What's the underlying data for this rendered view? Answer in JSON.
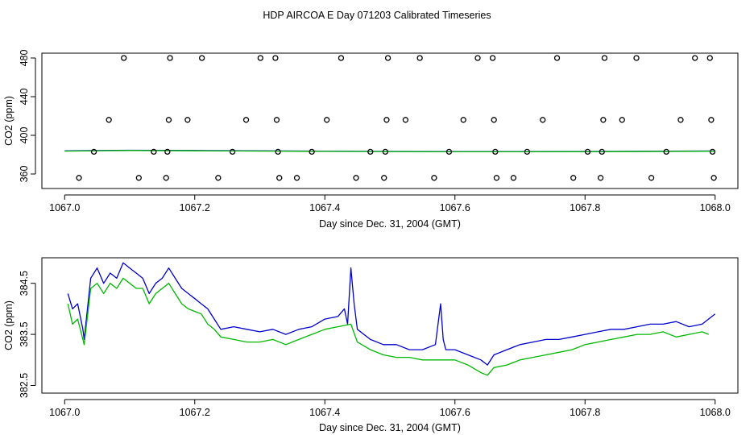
{
  "title": "HDP AIRCOA E  Day 071203  Calibrated Timeseries",
  "colors": {
    "blue": "#0000cc",
    "green": "#00b800",
    "black": "#000000"
  },
  "chart_data": [
    {
      "type": "scatter",
      "xlabel": "Day since Dec. 31, 2004 (GMT)",
      "ylabel": "CO2 (ppm)",
      "xlim": [
        1066.965,
        1068.035
      ],
      "ylim": [
        345,
        485
      ],
      "xticks": [
        1067.0,
        1067.2,
        1067.4,
        1067.6,
        1067.8,
        1068.0
      ],
      "xtick_labels": [
        "1067.0",
        "1067.2",
        "1067.4",
        "1067.6",
        "1067.8",
        "1068.0"
      ],
      "yticks": [
        360,
        400,
        440,
        480
      ],
      "ytick_labels": [
        "360",
        "400",
        "440",
        "480"
      ],
      "series": [
        {
          "style": "points",
          "color": "#000000",
          "points": [
            [
              1067.091,
              480
            ],
            [
              1067.162,
              480
            ],
            [
              1067.211,
              480
            ],
            [
              1067.301,
              480
            ],
            [
              1067.324,
              480
            ],
            [
              1067.425,
              480
            ],
            [
              1067.497,
              480
            ],
            [
              1067.546,
              480
            ],
            [
              1067.635,
              480
            ],
            [
              1067.658,
              480
            ],
            [
              1067.757,
              480
            ],
            [
              1067.83,
              480
            ],
            [
              1067.879,
              480
            ],
            [
              1067.969,
              480
            ],
            [
              1067.992,
              480
            ],
            [
              1067.068,
              416
            ],
            [
              1067.16,
              416
            ],
            [
              1067.189,
              416
            ],
            [
              1067.279,
              416
            ],
            [
              1067.326,
              416
            ],
            [
              1067.403,
              416
            ],
            [
              1067.495,
              416
            ],
            [
              1067.524,
              416
            ],
            [
              1067.613,
              416
            ],
            [
              1067.66,
              416
            ],
            [
              1067.735,
              416
            ],
            [
              1067.828,
              416
            ],
            [
              1067.857,
              416
            ],
            [
              1067.947,
              416
            ],
            [
              1067.994,
              416
            ],
            [
              1067.045,
              383
            ],
            [
              1067.137,
              383
            ],
            [
              1067.158,
              383
            ],
            [
              1067.258,
              383
            ],
            [
              1067.328,
              383
            ],
            [
              1067.38,
              383
            ],
            [
              1067.47,
              383
            ],
            [
              1067.493,
              383
            ],
            [
              1067.591,
              383
            ],
            [
              1067.662,
              383
            ],
            [
              1067.711,
              383
            ],
            [
              1067.804,
              383
            ],
            [
              1067.826,
              383
            ],
            [
              1067.925,
              383
            ],
            [
              1067.996,
              383
            ],
            [
              1067.022,
              356
            ],
            [
              1067.114,
              356
            ],
            [
              1067.156,
              356
            ],
            [
              1067.236,
              356
            ],
            [
              1067.33,
              356
            ],
            [
              1067.357,
              356
            ],
            [
              1067.448,
              356
            ],
            [
              1067.491,
              356
            ],
            [
              1067.568,
              356
            ],
            [
              1067.664,
              356
            ],
            [
              1067.69,
              356
            ],
            [
              1067.782,
              356
            ],
            [
              1067.824,
              356
            ],
            [
              1067.902,
              356
            ],
            [
              1067.998,
              356
            ]
          ]
        },
        {
          "style": "line",
          "color": "#0000cc",
          "x": [
            1067.0,
            1067.1,
            1067.2,
            1067.4,
            1067.6,
            1067.8,
            1068.0
          ],
          "y": [
            383.9,
            384.6,
            384.3,
            383.6,
            383.2,
            383.3,
            383.8
          ]
        },
        {
          "style": "line",
          "color": "#00b800",
          "x": [
            1067.0,
            1067.1,
            1067.2,
            1067.4,
            1067.6,
            1067.8,
            1068.0
          ],
          "y": [
            383.7,
            384.3,
            384.0,
            383.4,
            383.0,
            383.1,
            383.6
          ]
        }
      ]
    },
    {
      "type": "line",
      "xlabel": "Day since Dec. 31, 2004 (GMT)",
      "ylabel": "CO2 (ppm)",
      "xlim": [
        1066.965,
        1068.035
      ],
      "ylim": [
        382.35,
        385.0
      ],
      "xticks": [
        1067.0,
        1067.2,
        1067.4,
        1067.6,
        1067.8,
        1068.0
      ],
      "xtick_labels": [
        "1067.0",
        "1067.2",
        "1067.4",
        "1067.6",
        "1067.8",
        "1068.0"
      ],
      "yticks": [
        382.5,
        383.5,
        384.5
      ],
      "ytick_labels": [
        "382.5",
        "383.5",
        "384.5"
      ],
      "series": [
        {
          "color": "#0000cc",
          "x": [
            1067.005,
            1067.012,
            1067.02,
            1067.028,
            1067.03,
            1067.04,
            1067.05,
            1067.06,
            1067.07,
            1067.08,
            1067.09,
            1067.1,
            1067.11,
            1067.12,
            1067.13,
            1067.14,
            1067.15,
            1067.16,
            1067.17,
            1067.18,
            1067.19,
            1067.2,
            1067.21,
            1067.22,
            1067.23,
            1067.24,
            1067.26,
            1067.28,
            1067.3,
            1067.32,
            1067.34,
            1067.36,
            1067.38,
            1067.4,
            1067.42,
            1067.43,
            1067.435,
            1067.44,
            1067.445,
            1067.45,
            1067.47,
            1067.49,
            1067.51,
            1067.53,
            1067.55,
            1067.57,
            1067.578,
            1067.582,
            1067.586,
            1067.6,
            1067.62,
            1067.64,
            1067.65,
            1067.66,
            1067.68,
            1067.7,
            1067.72,
            1067.74,
            1067.76,
            1067.78,
            1067.8,
            1067.82,
            1067.84,
            1067.86,
            1067.88,
            1067.9,
            1067.92,
            1067.94,
            1067.96,
            1067.98,
            1068.0
          ],
          "y": [
            384.3,
            384.0,
            384.1,
            383.6,
            383.4,
            384.6,
            384.8,
            384.5,
            384.7,
            384.6,
            384.9,
            384.8,
            384.7,
            384.6,
            384.3,
            384.5,
            384.6,
            384.8,
            384.6,
            384.4,
            384.3,
            384.2,
            384.1,
            384.0,
            383.8,
            383.6,
            383.65,
            383.6,
            383.55,
            383.6,
            383.5,
            383.6,
            383.65,
            383.8,
            383.85,
            384.0,
            383.7,
            384.8,
            384.1,
            383.6,
            383.4,
            383.3,
            383.3,
            383.2,
            383.2,
            383.3,
            384.1,
            383.4,
            383.2,
            383.2,
            383.1,
            383.0,
            382.9,
            383.1,
            383.2,
            383.3,
            383.35,
            383.4,
            383.4,
            383.45,
            383.5,
            383.55,
            383.6,
            383.6,
            383.65,
            383.7,
            383.7,
            383.75,
            383.65,
            383.7,
            383.9
          ]
        },
        {
          "color": "#00b800",
          "x": [
            1067.005,
            1067.012,
            1067.02,
            1067.028,
            1067.03,
            1067.04,
            1067.05,
            1067.06,
            1067.07,
            1067.08,
            1067.09,
            1067.1,
            1067.11,
            1067.12,
            1067.13,
            1067.14,
            1067.15,
            1067.16,
            1067.17,
            1067.18,
            1067.19,
            1067.2,
            1067.21,
            1067.22,
            1067.23,
            1067.24,
            1067.26,
            1067.28,
            1067.3,
            1067.32,
            1067.34,
            1067.36,
            1067.38,
            1067.4,
            1067.42,
            1067.44,
            1067.45,
            1067.47,
            1067.49,
            1067.51,
            1067.53,
            1067.55,
            1067.57,
            1067.58,
            1067.6,
            1067.62,
            1067.64,
            1067.65,
            1067.66,
            1067.68,
            1067.7,
            1067.72,
            1067.74,
            1067.76,
            1067.78,
            1067.8,
            1067.82,
            1067.84,
            1067.86,
            1067.88,
            1067.9,
            1067.92,
            1067.94,
            1067.96,
            1067.98,
            1067.99
          ],
          "y": [
            384.1,
            383.7,
            383.8,
            383.4,
            383.3,
            384.4,
            384.5,
            384.3,
            384.5,
            384.4,
            384.6,
            384.5,
            384.4,
            384.4,
            384.1,
            384.3,
            384.4,
            384.5,
            384.3,
            384.1,
            384.0,
            383.95,
            383.9,
            383.7,
            383.6,
            383.45,
            383.4,
            383.35,
            383.35,
            383.4,
            383.3,
            383.4,
            383.5,
            383.6,
            383.65,
            383.7,
            383.35,
            383.2,
            383.1,
            383.05,
            383.05,
            383.0,
            383.0,
            383.0,
            383.0,
            382.9,
            382.75,
            382.7,
            382.85,
            382.9,
            383.0,
            383.05,
            383.1,
            383.15,
            383.2,
            383.3,
            383.35,
            383.4,
            383.45,
            383.5,
            383.5,
            383.55,
            383.45,
            383.5,
            383.55,
            383.5
          ]
        }
      ]
    }
  ]
}
